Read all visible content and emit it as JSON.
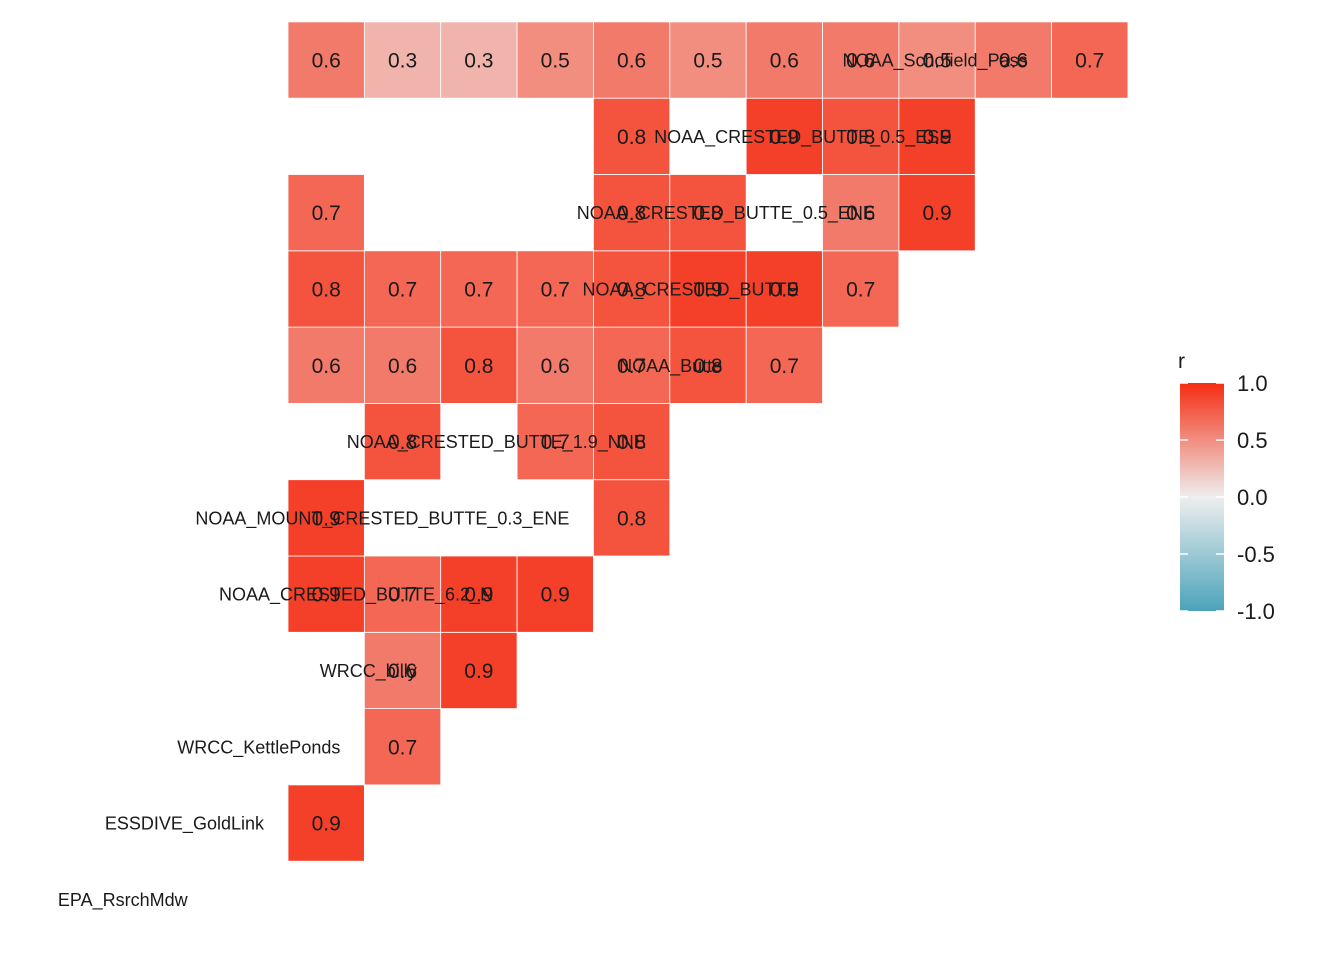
{
  "chart_data": {
    "type": "heatmap",
    "variables": [
      "EPA_RsrchMdw",
      "ESSDIVE_GoldLink",
      "WRCC_KettlePonds",
      "WRCC_billy",
      "NOAA_CRESTED_BUTTE_6.2_N",
      "NOAA_MOUNT_CRESTED_BUTTE_0.3_ENE",
      "NOAA_CRESTED_BUTTE_1.9_NNE",
      "NOAA_Butte",
      "NOAA_CRESTED_BUTTE",
      "NOAA_CRESTED_BUTTE_0.5_ENE",
      "NOAA_CRESTED_BUTTE_0.5_ESE",
      "NOAA_Schofield_Pass"
    ],
    "matrix": [
      [
        null,
        null,
        null,
        null,
        null,
        null,
        null,
        null,
        null,
        null,
        null
      ],
      [
        0.9,
        null,
        null,
        null,
        null,
        null,
        null,
        null,
        null,
        null,
        null
      ],
      [
        null,
        0.7,
        null,
        null,
        null,
        null,
        null,
        null,
        null,
        null,
        null
      ],
      [
        null,
        0.6,
        0.9,
        null,
        null,
        null,
        null,
        null,
        null,
        null,
        null
      ],
      [
        0.9,
        0.7,
        0.9,
        0.9,
        null,
        null,
        null,
        null,
        null,
        null,
        null
      ],
      [
        0.9,
        null,
        null,
        null,
        0.8,
        null,
        null,
        null,
        null,
        null,
        null
      ],
      [
        null,
        0.8,
        null,
        0.7,
        0.8,
        null,
        null,
        null,
        null,
        null,
        null
      ],
      [
        0.6,
        0.6,
        0.8,
        0.6,
        0.7,
        0.8,
        0.7,
        null,
        null,
        null,
        null
      ],
      [
        0.8,
        0.7,
        0.7,
        0.7,
        0.8,
        0.9,
        0.9,
        0.7,
        null,
        null,
        null
      ],
      [
        0.7,
        null,
        null,
        null,
        0.8,
        0.8,
        null,
        0.6,
        0.9,
        null,
        null
      ],
      [
        null,
        null,
        null,
        null,
        0.8,
        null,
        0.9,
        0.8,
        0.9,
        null,
        null
      ],
      [
        0.6,
        0.3,
        0.3,
        0.5,
        0.6,
        0.5,
        0.6,
        0.6,
        0.5,
        0.6,
        0.7
      ]
    ],
    "legend": {
      "title": "r",
      "ticks": [
        "1.0",
        "0.5",
        "0.0",
        "-0.5",
        "-1.0"
      ],
      "range": [
        -1,
        1
      ],
      "colors": {
        "low": "#4BA3BA",
        "mid": "#EEEEEE",
        "high": "#F52D12"
      },
      "placement": "right"
    }
  }
}
